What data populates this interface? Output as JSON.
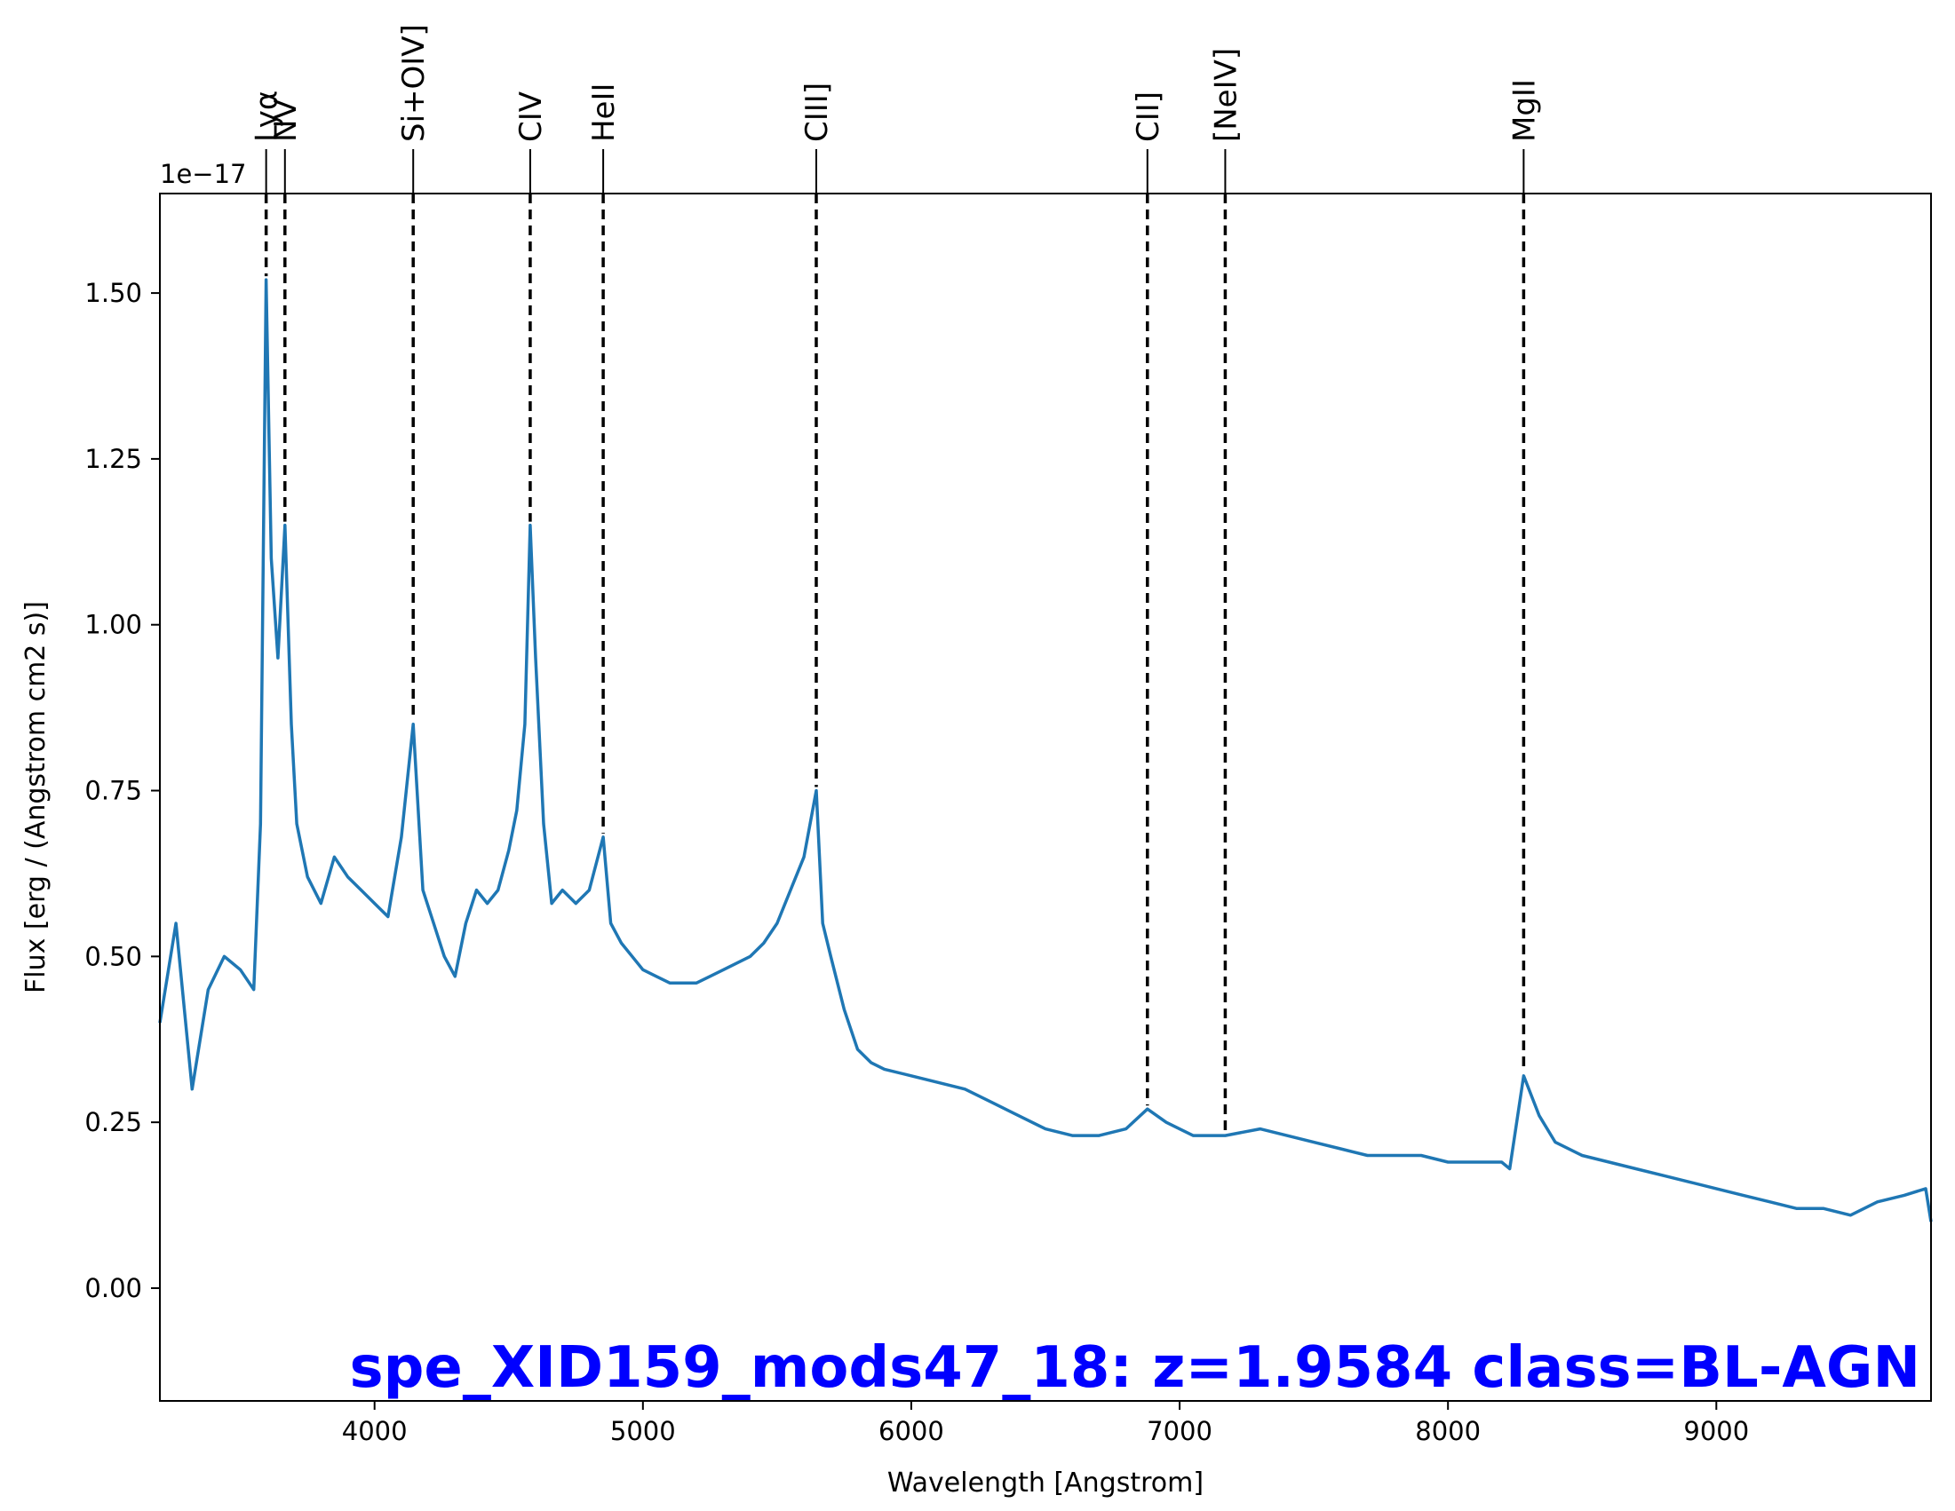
{
  "chart_data": {
    "type": "line",
    "title": "spe_XID159_mods47_18: z=1.9584 class=BL-AGN",
    "title_color": "#0000ff",
    "xlabel": "Wavelength [Angstrom]",
    "ylabel": "Flux [erg / (Angstrom cm2 s)]",
    "y_offset_label": "1e−17",
    "xlim": [
      3200,
      9800
    ],
    "ylim": [
      -0.17,
      1.65
    ],
    "x_ticks": [
      4000,
      5000,
      6000,
      7000,
      8000,
      9000
    ],
    "x_tick_labels": [
      "4000",
      "5000",
      "6000",
      "7000",
      "8000",
      "9000"
    ],
    "y_ticks": [
      0.0,
      0.25,
      0.5,
      0.75,
      1.0,
      1.25,
      1.5
    ],
    "y_tick_labels": [
      "0.00",
      "0.25",
      "0.50",
      "0.75",
      "1.00",
      "1.25",
      "1.50"
    ],
    "grid": false,
    "series_color": "#1f77b4",
    "emission_lines": [
      {
        "label": "Lyα",
        "wavelength": 3596
      },
      {
        "label": "NV",
        "wavelength": 3666
      },
      {
        "label": "Si+OIV]",
        "wavelength": 4144
      },
      {
        "label": "CIV",
        "wavelength": 4580
      },
      {
        "label": "HeII",
        "wavelength": 4852
      },
      {
        "label": "CIII]",
        "wavelength": 5646
      },
      {
        "label": "CII]",
        "wavelength": 6880
      },
      {
        "label": "[NeIV]",
        "wavelength": 7170
      },
      {
        "label": "MgII",
        "wavelength": 8282
      }
    ],
    "series": [
      {
        "x": [
          3200,
          3260,
          3320,
          3380,
          3440,
          3500,
          3550,
          3575,
          3596,
          3615,
          3640,
          3666,
          3690,
          3710,
          3750,
          3800,
          3850,
          3900,
          3950,
          4000,
          4050,
          4100,
          4144,
          4180,
          4220,
          4260,
          4300,
          4340,
          4380,
          4420,
          4460,
          4500,
          4530,
          4560,
          4580,
          4600,
          4630,
          4660,
          4700,
          4750,
          4800,
          4852,
          4880,
          4920,
          4960,
          5000,
          5050,
          5100,
          5150,
          5200,
          5250,
          5300,
          5350,
          5400,
          5450,
          5500,
          5550,
          5600,
          5646,
          5670,
          5700,
          5750,
          5800,
          5850,
          5900,
          6000,
          6100,
          6200,
          6300,
          6400,
          6500,
          6600,
          6700,
          6800,
          6880,
          6950,
          7050,
          7170,
          7300,
          7400,
          7500,
          7600,
          7700,
          7800,
          7900,
          8000,
          8100,
          8200,
          8230,
          8282,
          8340,
          8400,
          8500,
          8600,
          8700,
          8800,
          8900,
          9000,
          9100,
          9200,
          9300,
          9400,
          9500,
          9600,
          9700,
          9780,
          9800
        ],
        "y": [
          0.4,
          0.55,
          0.3,
          0.45,
          0.5,
          0.48,
          0.45,
          0.7,
          1.52,
          1.1,
          0.95,
          1.15,
          0.85,
          0.7,
          0.62,
          0.58,
          0.65,
          0.62,
          0.6,
          0.58,
          0.56,
          0.68,
          0.85,
          0.6,
          0.55,
          0.5,
          0.47,
          0.55,
          0.6,
          0.58,
          0.6,
          0.66,
          0.72,
          0.85,
          1.15,
          0.95,
          0.7,
          0.58,
          0.6,
          0.58,
          0.6,
          0.68,
          0.55,
          0.52,
          0.5,
          0.48,
          0.47,
          0.46,
          0.46,
          0.46,
          0.47,
          0.48,
          0.49,
          0.5,
          0.52,
          0.55,
          0.6,
          0.65,
          0.75,
          0.55,
          0.5,
          0.42,
          0.36,
          0.34,
          0.33,
          0.32,
          0.31,
          0.3,
          0.28,
          0.26,
          0.24,
          0.23,
          0.23,
          0.24,
          0.27,
          0.25,
          0.23,
          0.23,
          0.24,
          0.23,
          0.22,
          0.21,
          0.2,
          0.2,
          0.2,
          0.19,
          0.19,
          0.19,
          0.18,
          0.32,
          0.26,
          0.22,
          0.2,
          0.19,
          0.18,
          0.17,
          0.16,
          0.15,
          0.14,
          0.13,
          0.12,
          0.12,
          0.11,
          0.13,
          0.14,
          0.15,
          0.1
        ]
      }
    ]
  }
}
